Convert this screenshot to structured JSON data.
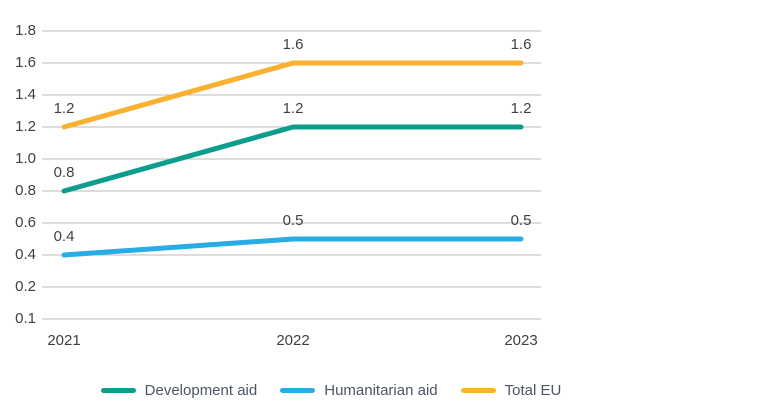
{
  "chart_data": {
    "type": "line",
    "title": "",
    "xlabel": "",
    "ylabel": "",
    "categories": [
      "2021",
      "2022",
      "2023"
    ],
    "series": [
      {
        "name": "Development aid",
        "color": "#0D9D8C",
        "values": [
          0.8,
          1.2,
          1.2
        ]
      },
      {
        "name": "Humanitarian aid",
        "color": "#27ACE3",
        "values": [
          0.4,
          0.5,
          0.5
        ]
      },
      {
        "name": "Total EU",
        "color": "#F9B12F",
        "values": [
          1.2,
          1.6,
          1.6
        ]
      }
    ],
    "y_tick_labels": [
      "1.8",
      "1.6",
      "1.4",
      "1.2",
      "1.0",
      "0.8",
      "0.6",
      "0.4",
      "0.2",
      "0.1"
    ],
    "y_tick_values": [
      1.8,
      1.6,
      1.4,
      1.2,
      1.0,
      0.8,
      0.6,
      0.4,
      0.2,
      0.1
    ],
    "data_labels_shown": true,
    "data_label_decimals": 1,
    "grid": "horizontal-only",
    "legend_position": "bottom",
    "gridline_color": "#BBBBBB",
    "axis_text_color": "#404040",
    "data_label_color": "#404040",
    "legend_text_color": "#4B5565",
    "background_color": "#FFFFFF"
  }
}
